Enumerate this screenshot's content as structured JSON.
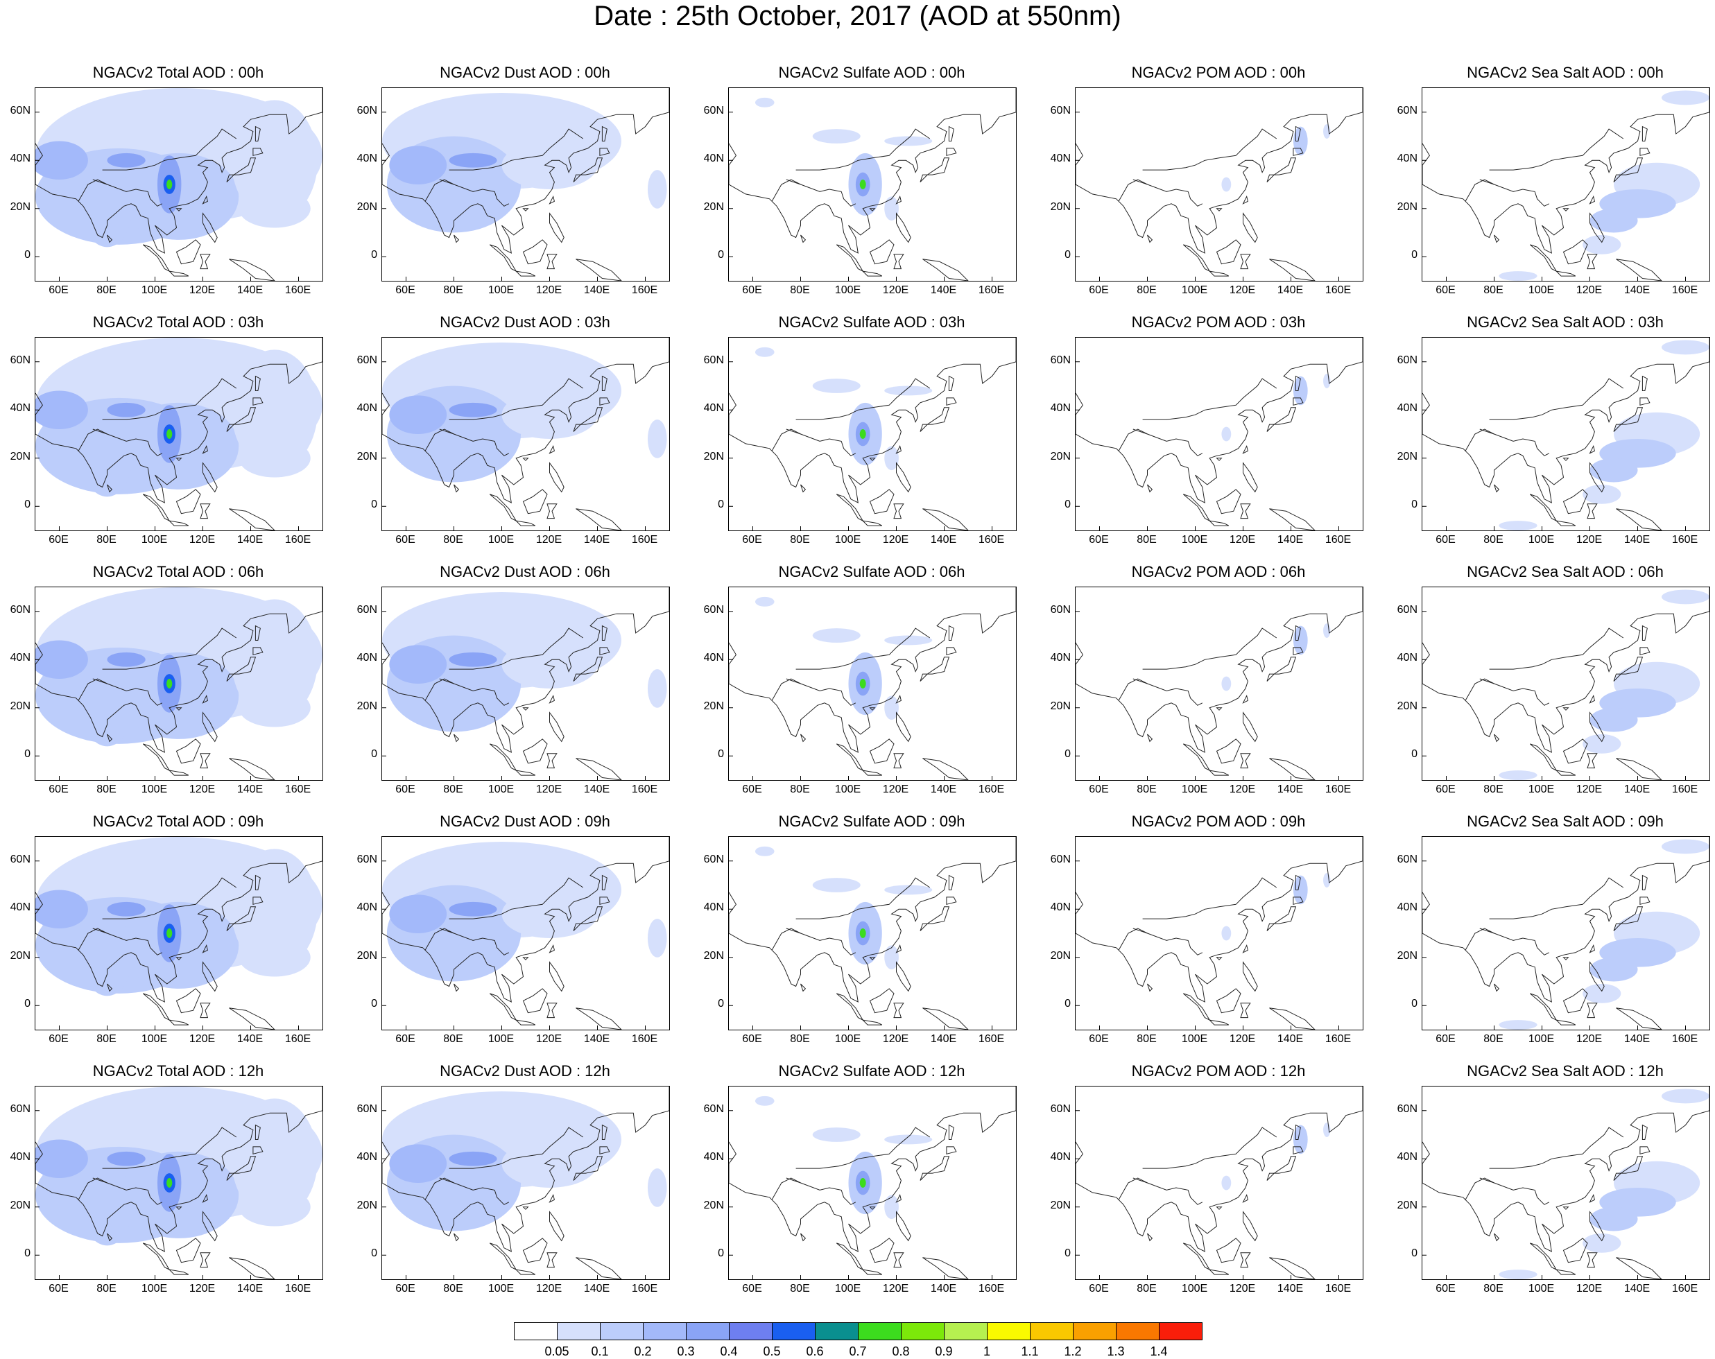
{
  "title": "Date : 25th October, 2017 (AOD at 550nm)",
  "lat_labels": [
    "60N",
    "40N",
    "20N",
    "0"
  ],
  "lat_values": [
    60,
    40,
    20,
    0
  ],
  "lon_labels": [
    "60E",
    "80E",
    "100E",
    "120E",
    "140E",
    "160E"
  ],
  "lon_values": [
    60,
    80,
    100,
    120,
    140,
    160
  ],
  "map_extent": {
    "lon": [
      50,
      170
    ],
    "lat": [
      -10,
      70
    ]
  },
  "panels": [
    {
      "title": "NGACv2 Total AOD : 00h",
      "kind": "total"
    },
    {
      "title": "NGACv2 Dust AOD : 00h",
      "kind": "dust"
    },
    {
      "title": "NGACv2 Sulfate AOD : 00h",
      "kind": "sulfate"
    },
    {
      "title": "NGACv2 POM AOD : 00h",
      "kind": "pom"
    },
    {
      "title": "NGACv2 Sea Salt AOD : 00h",
      "kind": "seasalt"
    },
    {
      "title": "NGACv2 Total AOD : 03h",
      "kind": "total"
    },
    {
      "title": "NGACv2 Dust AOD : 03h",
      "kind": "dust"
    },
    {
      "title": "NGACv2 Sulfate AOD : 03h",
      "kind": "sulfate"
    },
    {
      "title": "NGACv2 POM AOD : 03h",
      "kind": "pom"
    },
    {
      "title": "NGACv2 Sea Salt AOD : 03h",
      "kind": "seasalt"
    },
    {
      "title": "NGACv2 Total AOD : 06h",
      "kind": "total"
    },
    {
      "title": "NGACv2 Dust AOD : 06h",
      "kind": "dust"
    },
    {
      "title": "NGACv2 Sulfate AOD : 06h",
      "kind": "sulfate"
    },
    {
      "title": "NGACv2 POM AOD : 06h",
      "kind": "pom"
    },
    {
      "title": "NGACv2 Sea Salt AOD : 06h",
      "kind": "seasalt"
    },
    {
      "title": "NGACv2 Total AOD : 09h",
      "kind": "total"
    },
    {
      "title": "NGACv2 Dust AOD : 09h",
      "kind": "dust"
    },
    {
      "title": "NGACv2 Sulfate AOD : 09h",
      "kind": "sulfate"
    },
    {
      "title": "NGACv2 POM AOD : 09h",
      "kind": "pom"
    },
    {
      "title": "NGACv2 Sea Salt  AOD : 09h",
      "kind": "seasalt"
    },
    {
      "title": "NGACv2 Total AOD  : 12h",
      "kind": "total"
    },
    {
      "title": "NGACv2 Dust AOD : 12h",
      "kind": "dust"
    },
    {
      "title": "NGACv2 Sulfate AOD : 12h",
      "kind": "sulfate"
    },
    {
      "title": "NGACv2 POM  AOD : 12h",
      "kind": "pom"
    },
    {
      "title": "NGACv2 Sea Salt  AOD : 12h",
      "kind": "seasalt"
    }
  ],
  "colorbar": {
    "labels": [
      "0.05",
      "0.1",
      "0.2",
      "0.3",
      "0.4",
      "0.5",
      "0.6",
      "0.7",
      "0.8",
      "0.9",
      "1",
      "1.1",
      "1.2",
      "1.3",
      "1.4"
    ],
    "colors": [
      "#ffffff",
      "#d6e0fc",
      "#bccdfb",
      "#a3b9fa",
      "#8aa4f6",
      "#6e7ff0",
      "#1a5ff0",
      "#0a8f8f",
      "#3cdc1e",
      "#7ce80a",
      "#b6f050",
      "#fafa00",
      "#fac800",
      "#faa000",
      "#fa7800",
      "#fa1e0a"
    ]
  }
}
